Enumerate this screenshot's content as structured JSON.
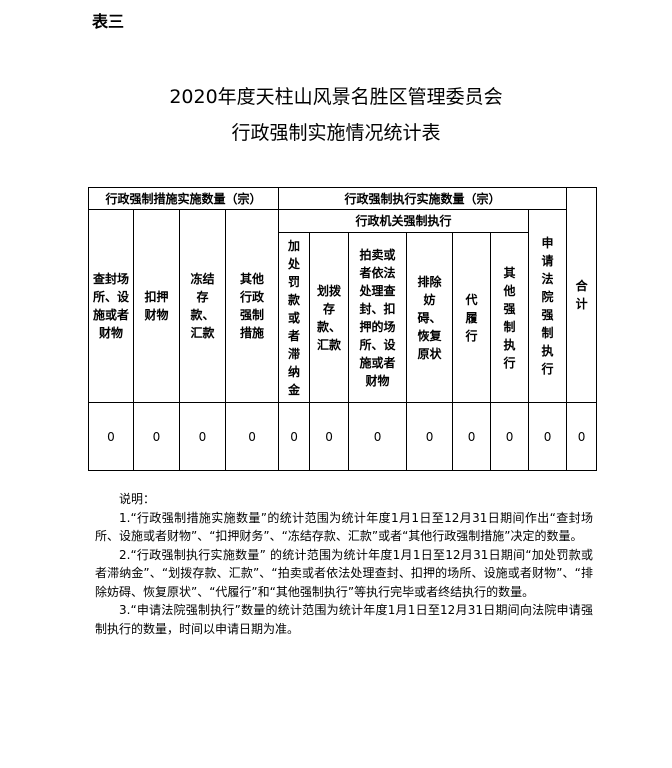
{
  "label": "表三",
  "title_line1": "2020年度天柱山风景名胜区管理委员会",
  "title_line2": "行政强制实施情况统计表",
  "table": {
    "group_measures": "行政强制措施实施数量（宗）",
    "group_execution": "行政强制执行实施数量（宗）",
    "subgroup_admin": "行政机关强制执行",
    "columns": [
      "查封场所、设施或者财物",
      "扣押财物",
      "冻结存款、汇款",
      "其他行政强制措施",
      "加处罚款或者滞纳金",
      "划拨存款、汇款",
      "拍卖或者依法处理查封、扣押的场所、设施或者财物",
      "排除妨碍、恢复原状",
      "代履行",
      "其他强制执行",
      "申请法院强制执行",
      "合计"
    ],
    "values": [
      "0",
      "0",
      "0",
      "0",
      "0",
      "0",
      "0",
      "0",
      "0",
      "0",
      "0",
      "0"
    ]
  },
  "notes": {
    "heading": "说明：",
    "items": [
      "1.“行政强制措施实施数量”的统计范围为统计年度1月1日至12月31日期间作出“查封场所、设施或者财物”、“扣押财务”、“冻结存款、汇款”或者“其他行政强制措施”决定的数量。",
      "2.“行政强制执行实施数量” 的统计范围为统计年度1月1日至12月31日期间“加处罚款或者滞纳金”、“划拨存款、汇款”、“拍卖或者依法处理查封、扣押的场所、设施或者财物”、“排除妨碍、恢复原状”、“代履行”和“其他强制执行”等执行完毕或者终结执行的数量。",
      "3.“申请法院强制执行”数量的统计范围为统计年度1月1日至12月31日期间向法院申请强制执行的数量，时间以申请日期为准。"
    ]
  }
}
